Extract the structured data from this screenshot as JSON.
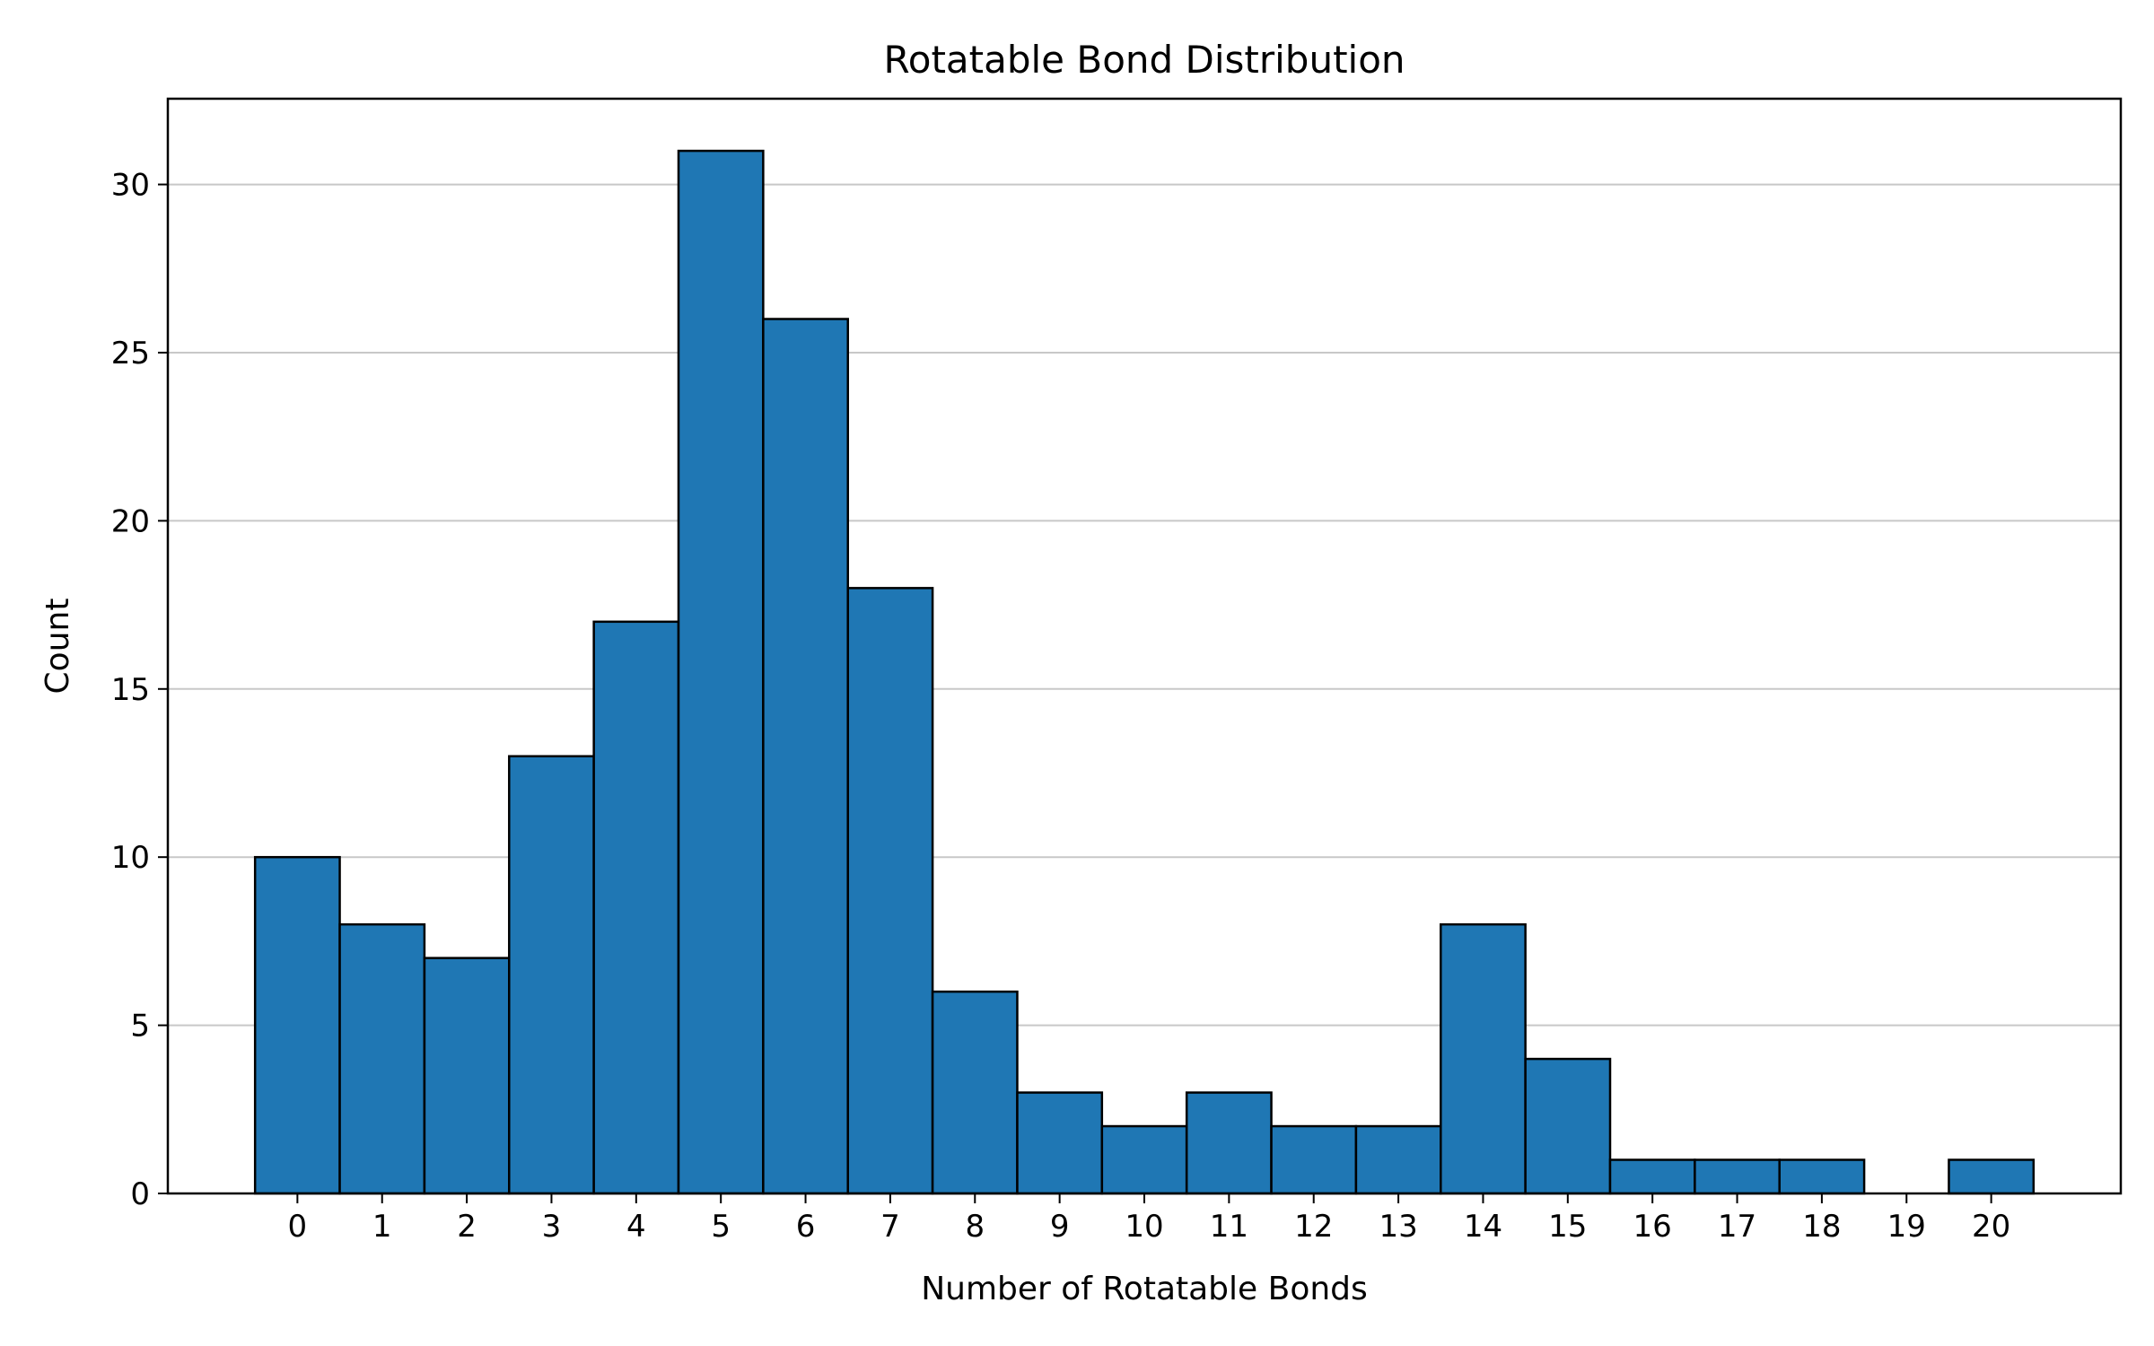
{
  "chart_data": {
    "type": "bar",
    "title": "Rotatable Bond Distribution",
    "xlabel": "Number of Rotatable Bonds",
    "ylabel": "Count",
    "categories": [
      "0",
      "1",
      "2",
      "3",
      "4",
      "5",
      "6",
      "7",
      "8",
      "9",
      "10",
      "11",
      "12",
      "13",
      "14",
      "15",
      "16",
      "17",
      "18",
      "19",
      "20"
    ],
    "values": [
      10,
      8,
      7,
      13,
      17,
      31,
      26,
      18,
      6,
      3,
      2,
      3,
      2,
      2,
      8,
      4,
      1,
      1,
      1,
      0,
      1
    ],
    "yticks": [
      "0",
      "5",
      "10",
      "15",
      "20",
      "25",
      "30"
    ],
    "ylim": [
      0,
      32.55
    ],
    "xlim": [
      -1.53,
      21.53
    ],
    "grid": "y",
    "bar_color": "#1f77b4",
    "edge_color": "#000000"
  }
}
